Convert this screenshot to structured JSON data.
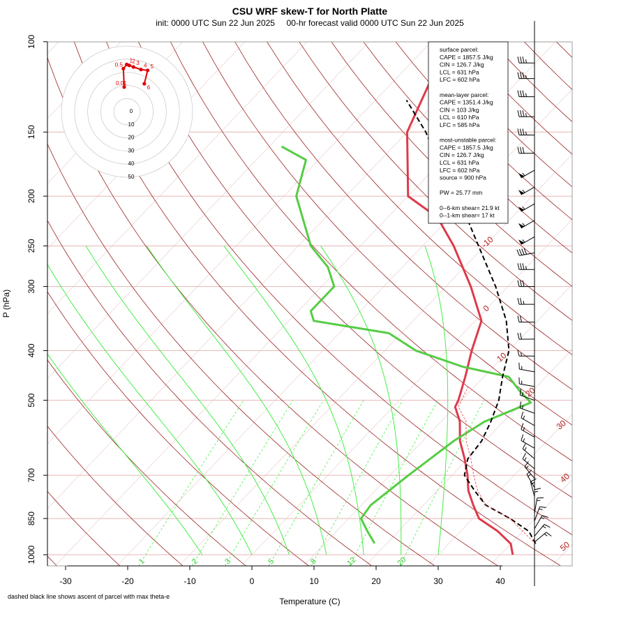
{
  "chart_data": {
    "type": "line",
    "chart_kind": "skew-T log-P diagram",
    "title": "CSU WRF skew-T for North Platte",
    "subtitle": "init: 0000 UTC Sun 22 Jun 2025     00-hr forecast valid 0000 UTC Sun 22 Jun 2025",
    "xlabel": "Temperature (C)",
    "ylabel": "P (hPa)",
    "xlim": [
      -33,
      52
    ],
    "ylim": [
      1050,
      100
    ],
    "y_scale": "log",
    "x_ticks": [
      -30,
      -20,
      -10,
      0,
      10,
      20,
      30,
      40
    ],
    "y_ticks": [
      100,
      150,
      200,
      250,
      300,
      400,
      500,
      700,
      850,
      1000
    ],
    "grid": true,
    "isotherm_labels": [
      -10,
      0,
      10,
      20,
      30,
      40,
      50
    ],
    "mixing_ratio_labels": [
      "1",
      "2",
      "3",
      "5",
      "8",
      "12",
      "20"
    ],
    "footnote": "dashed black line shows ascent of parcel with max theta-e",
    "series": [
      {
        "name": "",
        "color": "#dd3a4a",
        "role": "temperature",
        "points": [
          [
            1000,
            42
          ],
          [
            952,
            40
          ],
          [
            900,
            36
          ],
          [
            850,
            31
          ],
          [
            800,
            28
          ],
          [
            750,
            25
          ],
          [
            700,
            22.5
          ],
          [
            650,
            19.5
          ],
          [
            600,
            16
          ],
          [
            550,
            13
          ],
          [
            515,
            10
          ],
          [
            500,
            9.5
          ],
          [
            450,
            7
          ],
          [
            400,
            4
          ],
          [
            350,
            1
          ],
          [
            300,
            -6
          ],
          [
            250,
            -15
          ],
          [
            220,
            -22
          ],
          [
            200,
            -30
          ],
          [
            150,
            -40
          ],
          [
            120,
            -44
          ],
          [
            105,
            -45
          ]
        ]
      },
      {
        "name": "",
        "color": "#55cc44",
        "role": "dewpoint",
        "points": [
          [
            950,
            18
          ],
          [
            900,
            15
          ],
          [
            850,
            12
          ],
          [
            800,
            11.5
          ],
          [
            700,
            13
          ],
          [
            600,
            15
          ],
          [
            550,
            17
          ],
          [
            520,
            20
          ],
          [
            505,
            21.5
          ],
          [
            480,
            18
          ],
          [
            450,
            14
          ],
          [
            430,
            5
          ],
          [
            400,
            -5
          ],
          [
            370,
            -12
          ],
          [
            350,
            -26
          ],
          [
            335,
            -28
          ],
          [
            300,
            -28
          ],
          [
            275,
            -32
          ],
          [
            250,
            -38
          ],
          [
            200,
            -48
          ],
          [
            170,
            -52
          ],
          [
            160,
            -58
          ]
        ]
      },
      {
        "name": "",
        "color": "#000000",
        "role": "parcel (max theta-e)",
        "points": [
          [
            952,
            44
          ],
          [
            900,
            41
          ],
          [
            850,
            36
          ],
          [
            800,
            30
          ],
          [
            750,
            26
          ],
          [
            700,
            22
          ],
          [
            650,
            20
          ],
          [
            600,
            19.5
          ],
          [
            550,
            18
          ],
          [
            500,
            16
          ],
          [
            450,
            13
          ],
          [
            400,
            10
          ],
          [
            350,
            5
          ],
          [
            300,
            -2
          ],
          [
            250,
            -11
          ],
          [
            200,
            -22
          ],
          [
            180,
            -28
          ],
          [
            150,
            -37
          ],
          [
            130,
            -45
          ]
        ]
      },
      {
        "name": "",
        "color": "#e03a3a",
        "role": "virtual temperature",
        "points": [
          [
            952,
            44
          ],
          [
            900,
            40
          ],
          [
            850,
            36
          ],
          [
            800,
            30
          ],
          [
            750,
            26.5
          ],
          [
            700,
            23.5
          ],
          [
            650,
            20.5
          ],
          [
            600,
            17
          ],
          [
            550,
            14
          ],
          [
            515,
            10.5
          ],
          [
            500,
            10
          ],
          [
            470,
            9
          ]
        ]
      }
    ],
    "hodograph": {
      "rings_labels": [
        "0",
        "10",
        "20",
        "30",
        "40",
        "50"
      ],
      "points": [
        {
          "label": "0.01",
          "u": 2,
          "v": 13
        },
        {
          "label": "0.5",
          "u": 1.5,
          "v": 24
        },
        {
          "label": "1",
          "u": 3.5,
          "v": 26.5
        },
        {
          "label": "2",
          "u": 5,
          "v": 26
        },
        {
          "label": "3",
          "u": 7.5,
          "v": 25
        },
        {
          "label": "4",
          "u": 12,
          "v": 23.5
        },
        {
          "label": "5",
          "u": 16,
          "v": 23
        },
        {
          "label": "6",
          "u": 14,
          "v": 15
        }
      ]
    },
    "wind_barbs": [
      {
        "p": 110,
        "spd": 35,
        "dir": 270
      },
      {
        "p": 118,
        "spd": 35,
        "dir": 270
      },
      {
        "p": 128,
        "spd": 35,
        "dir": 270
      },
      {
        "p": 140,
        "spd": 35,
        "dir": 270
      },
      {
        "p": 152,
        "spd": 35,
        "dir": 270
      },
      {
        "p": 165,
        "spd": 30,
        "dir": 270
      },
      {
        "p": 178,
        "spd": 55,
        "dir": 240
      },
      {
        "p": 192,
        "spd": 55,
        "dir": 240
      },
      {
        "p": 207,
        "spd": 55,
        "dir": 240
      },
      {
        "p": 223,
        "spd": 55,
        "dir": 240
      },
      {
        "p": 240,
        "spd": 55,
        "dir": 240
      },
      {
        "p": 258,
        "spd": 40,
        "dir": 260
      },
      {
        "p": 278,
        "spd": 35,
        "dir": 270
      },
      {
        "p": 300,
        "spd": 30,
        "dir": 270
      },
      {
        "p": 325,
        "spd": 25,
        "dir": 270
      },
      {
        "p": 352,
        "spd": 20,
        "dir": 270
      },
      {
        "p": 380,
        "spd": 20,
        "dir": 270
      },
      {
        "p": 410,
        "spd": 15,
        "dir": 270
      },
      {
        "p": 440,
        "spd": 15,
        "dir": 280
      },
      {
        "p": 470,
        "spd": 15,
        "dir": 280
      },
      {
        "p": 500,
        "spd": 15,
        "dir": 290
      },
      {
        "p": 530,
        "spd": 15,
        "dir": 290
      },
      {
        "p": 560,
        "spd": 15,
        "dir": 300
      },
      {
        "p": 590,
        "spd": 15,
        "dir": 300
      },
      {
        "p": 620,
        "spd": 15,
        "dir": 300
      },
      {
        "p": 650,
        "spd": 15,
        "dir": 310
      },
      {
        "p": 680,
        "spd": 15,
        "dir": 310
      },
      {
        "p": 710,
        "spd": 15,
        "dir": 320
      },
      {
        "p": 740,
        "spd": 15,
        "dir": 330
      },
      {
        "p": 770,
        "spd": 15,
        "dir": 345
      },
      {
        "p": 800,
        "spd": 15,
        "dir": 0
      },
      {
        "p": 830,
        "spd": 15,
        "dir": 10
      },
      {
        "p": 860,
        "spd": 15,
        "dir": 20
      },
      {
        "p": 890,
        "spd": 15,
        "dir": 30
      },
      {
        "p": 920,
        "spd": 15,
        "dir": 40
      },
      {
        "p": 945,
        "spd": 15,
        "dir": 50
      }
    ],
    "stats_box": [
      "surface parcel:",
      "CAPE = 1857.5 J/kg",
      "CIN = 126.7 J/kg",
      "LCL = 631 hPa",
      "LFC = 602 hPa",
      "",
      "mean-layer parcel:",
      "CAPE = 1351.4 J/kg",
      "CIN = 103 J/kg",
      "LCL = 610 hPa",
      "LFC = 585 hPa",
      "",
      "most-unstable parcel:",
      "CAPE = 1857.5 J/kg",
      "CIN = 126.7 J/kg",
      "LCL = 631 hPa",
      "LFC = 602 hPa",
      "source = 900 hPa",
      "",
      "PW =  25.77 mm",
      "",
      "0--6-km shear= 21.9 kt",
      "0--1-km shear= 17 kt"
    ]
  }
}
